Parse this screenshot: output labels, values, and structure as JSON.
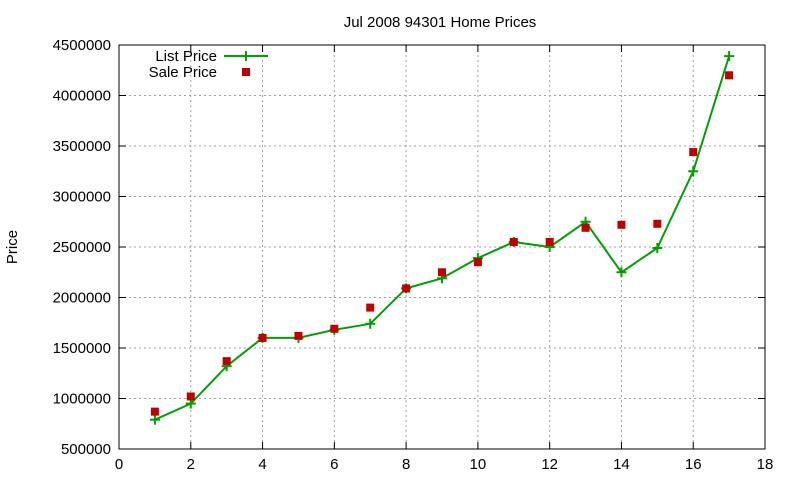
{
  "chart_data": {
    "type": "line",
    "title": "Jul 2008 94301 Home Prices",
    "xlabel": "",
    "ylabel": "Price",
    "xlim": [
      0,
      18
    ],
    "ylim": [
      500000,
      4500000
    ],
    "xticks": [
      0,
      2,
      4,
      6,
      8,
      10,
      12,
      14,
      16,
      18
    ],
    "yticks": [
      500000,
      1000000,
      1500000,
      2000000,
      2500000,
      3000000,
      3500000,
      4000000,
      4500000
    ],
    "grid": true,
    "legend_position": "top-left",
    "series": [
      {
        "name": "List Price",
        "style": "line-with-plus-markers",
        "color": "#00a000",
        "x": [
          1,
          2,
          3,
          4,
          5,
          6,
          7,
          8,
          9,
          10,
          11,
          12,
          13,
          14,
          15,
          16,
          17
        ],
        "y": [
          790000,
          950000,
          1320000,
          1600000,
          1600000,
          1680000,
          1740000,
          2090000,
          2190000,
          2390000,
          2550000,
          2500000,
          2750000,
          2250000,
          2490000,
          3250000,
          4390000
        ]
      },
      {
        "name": "Sale Price",
        "style": "square-markers",
        "color": "#c00000",
        "x": [
          1,
          2,
          3,
          4,
          5,
          6,
          7,
          8,
          9,
          10,
          11,
          12,
          13,
          14,
          15,
          16,
          17
        ],
        "y": [
          870000,
          1020000,
          1370000,
          1600000,
          1620000,
          1690000,
          1900000,
          2090000,
          2250000,
          2350000,
          2550000,
          2550000,
          2690000,
          2720000,
          2730000,
          3440000,
          4200000
        ]
      }
    ]
  }
}
